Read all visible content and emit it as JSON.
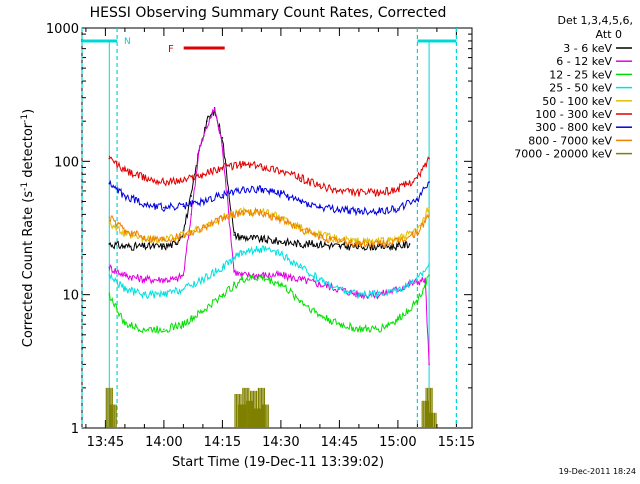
{
  "chart_data": {
    "type": "line",
    "title": "HESSI Observing Summary Count Rates, Corrected",
    "xlabel": "Start Time (19-Dec-11 13:39:02)",
    "ylabel": "Corrected Count Rate (s",
    "ylabel_sup1": "-1",
    "ylabel_mid": " detector",
    "ylabel_sup2": "-1",
    "ylabel_end": ")",
    "y_scale": "log",
    "xlim": [
      "13:39",
      "15:19"
    ],
    "ylim": [
      1,
      1000
    ],
    "x_ticks": [
      "13:45",
      "14:00",
      "14:15",
      "14:30",
      "14:45",
      "15:00",
      "15:15"
    ],
    "y_ticks": [
      "1",
      "10",
      "100",
      "1000"
    ],
    "legend_title_1": "Det 1,3,4,5,6,",
    "legend_title_2": "Att 0",
    "legend_position": "outside right",
    "footer_date": "19-Dec-2011 18:24",
    "marker_N": "N",
    "marker_F": "F",
    "flare_flag": {
      "label": "F",
      "start": "14:02",
      "end": "14:12",
      "color": "#e00000"
    },
    "night_intervals": [
      {
        "label": "N",
        "start": "13:39",
        "end": "13:48"
      },
      {
        "label": "",
        "start": "15:05",
        "end": "15:15"
      }
    ],
    "series": [
      {
        "name": "3 - 6 keV",
        "color": "#000000",
        "x": [
          "13:46",
          "13:50",
          "13:55",
          "14:00",
          "14:03",
          "14:05",
          "14:07",
          "14:09",
          "14:11",
          "14:13",
          "14:15",
          "14:18",
          "14:20",
          "14:25",
          "14:30",
          "14:35",
          "14:40",
          "14:45",
          "14:50",
          "14:55",
          "15:00",
          "15:03"
        ],
        "y": [
          24,
          23,
          23,
          23,
          24,
          30,
          55,
          120,
          200,
          240,
          150,
          28,
          27,
          26,
          25,
          24,
          24,
          23,
          23,
          23,
          23,
          24
        ]
      },
      {
        "name": "6 - 12 keV",
        "color": "#e000e0",
        "x": [
          "13:46",
          "13:50",
          "13:55",
          "14:00",
          "14:03",
          "14:05",
          "14:07",
          "14:09",
          "14:11",
          "14:13",
          "14:15",
          "14:18",
          "14:20",
          "14:25",
          "14:30",
          "14:35",
          "14:40",
          "14:45",
          "14:50",
          "14:55",
          "15:00",
          "15:03",
          "15:07",
          "15:08"
        ],
        "y": [
          16,
          14,
          13,
          13,
          13,
          14,
          40,
          120,
          180,
          250,
          130,
          15,
          14,
          14,
          14,
          13,
          12,
          11,
          10,
          10,
          11,
          12,
          13,
          3
        ]
      },
      {
        "name": "12 - 25 keV",
        "color": "#00e000",
        "x": [
          "13:46",
          "13:50",
          "13:55",
          "14:00",
          "14:05",
          "14:10",
          "14:15",
          "14:20",
          "14:25",
          "14:30",
          "14:35",
          "14:40",
          "14:45",
          "14:50",
          "14:55",
          "15:00",
          "15:05",
          "15:08"
        ],
        "y": [
          10,
          6,
          5.5,
          5.5,
          6,
          7.5,
          10,
          13,
          13.5,
          12,
          9,
          7,
          6,
          5.5,
          5.5,
          6.5,
          9,
          14
        ]
      },
      {
        "name": "25 - 50 keV",
        "color": "#00e0e0",
        "x": [
          "13:46",
          "13:50",
          "13:55",
          "14:00",
          "14:05",
          "14:10",
          "14:15",
          "14:20",
          "14:25",
          "14:30",
          "14:35",
          "14:40",
          "14:45",
          "14:50",
          "14:55",
          "15:00",
          "15:05",
          "15:08"
        ],
        "y": [
          14,
          11,
          10,
          10,
          11,
          13,
          16,
          21,
          22,
          20,
          16,
          13,
          11,
          10,
          10,
          11,
          13,
          17
        ]
      },
      {
        "name": "50 - 100 keV",
        "color": "#e0c000",
        "x": [
          "13:46",
          "13:50",
          "13:55",
          "14:00",
          "14:05",
          "14:10",
          "14:15",
          "14:20",
          "14:25",
          "14:30",
          "14:35",
          "14:40",
          "14:45",
          "14:50",
          "14:55",
          "15:00",
          "15:05",
          "15:08"
        ],
        "y": [
          35,
          28,
          26,
          26,
          28,
          32,
          38,
          42,
          42,
          38,
          32,
          28,
          26,
          25,
          25,
          26,
          30,
          45
        ]
      },
      {
        "name": "100 - 300 keV",
        "color": "#e00000",
        "x": [
          "13:46",
          "13:50",
          "13:55",
          "14:00",
          "14:05",
          "14:10",
          "14:15",
          "14:20",
          "14:25",
          "14:30",
          "14:35",
          "14:40",
          "14:45",
          "14:50",
          "14:55",
          "15:00",
          "15:05",
          "15:08"
        ],
        "y": [
          105,
          85,
          75,
          70,
          72,
          80,
          90,
          95,
          92,
          85,
          75,
          65,
          60,
          58,
          58,
          62,
          75,
          105
        ]
      },
      {
        "name": "300 - 800 keV",
        "color": "#0000e0",
        "x": [
          "13:46",
          "13:50",
          "13:55",
          "14:00",
          "14:05",
          "14:10",
          "14:15",
          "14:20",
          "14:25",
          "14:30",
          "14:35",
          "14:40",
          "14:45",
          "14:50",
          "14:55",
          "15:00",
          "15:05",
          "15:08"
        ],
        "y": [
          68,
          55,
          48,
          45,
          46,
          50,
          56,
          62,
          62,
          57,
          50,
          45,
          43,
          42,
          42,
          44,
          52,
          70
        ]
      },
      {
        "name": "800 - 7000 keV",
        "color": "#f08000",
        "x": [
          "13:46",
          "13:50",
          "13:55",
          "14:00",
          "14:05",
          "14:10",
          "14:15",
          "14:20",
          "14:25",
          "14:30",
          "14:35",
          "14:40",
          "14:45",
          "14:50",
          "14:55",
          "15:00",
          "15:05",
          "15:08"
        ],
        "y": [
          38,
          30,
          27,
          26,
          28,
          32,
          37,
          42,
          41,
          37,
          31,
          27,
          25,
          24,
          24,
          25,
          29,
          40
        ]
      },
      {
        "name": "7000 - 20000 keV",
        "color": "#808000",
        "x": [
          "13:46",
          "13:47",
          "13:48",
          "14:19",
          "14:20",
          "14:21",
          "14:22",
          "14:23",
          "14:24",
          "14:25",
          "14:26",
          "15:07",
          "15:08",
          "15:09"
        ],
        "y": [
          2,
          1.5,
          1,
          1.8,
          1.5,
          2,
          1.6,
          1.9,
          1.4,
          2,
          1.5,
          1.6,
          2,
          1.3
        ]
      }
    ]
  }
}
